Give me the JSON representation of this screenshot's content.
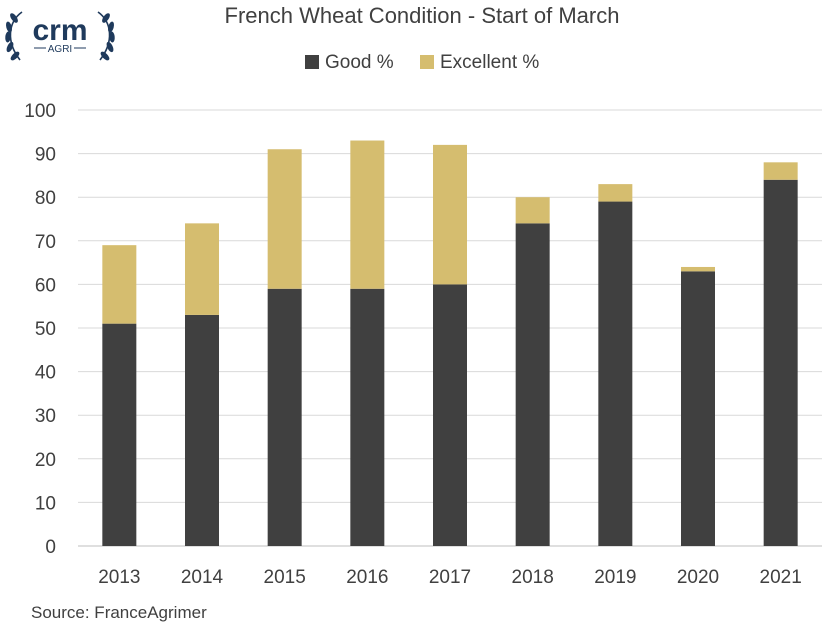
{
  "logo": {
    "name": "crm",
    "subtext": "AGRI",
    "color": "#1f3a5c"
  },
  "source": "Source: FranceAgrimer",
  "chart_data": {
    "type": "bar",
    "stacked": true,
    "title": "French Wheat Condition - Start of March",
    "xlabel": "",
    "ylabel": "",
    "categories": [
      "2013",
      "2014",
      "2015",
      "2016",
      "2017",
      "2018",
      "2019",
      "2020",
      "2021"
    ],
    "series": [
      {
        "name": "Good %",
        "color": "#404040",
        "values": [
          51,
          53,
          59,
          59,
          60,
          74,
          79,
          63,
          84
        ]
      },
      {
        "name": "Excellent %",
        "color": "#d5bd6f",
        "values": [
          18,
          21,
          32,
          34,
          32,
          6,
          4,
          1,
          4
        ]
      }
    ],
    "ylim": [
      0,
      100
    ],
    "yticks": [
      "0",
      "10",
      "20",
      "30",
      "40",
      "50",
      "60",
      "70",
      "80",
      "90",
      "100"
    ],
    "grid": true,
    "legend_position": "top"
  }
}
